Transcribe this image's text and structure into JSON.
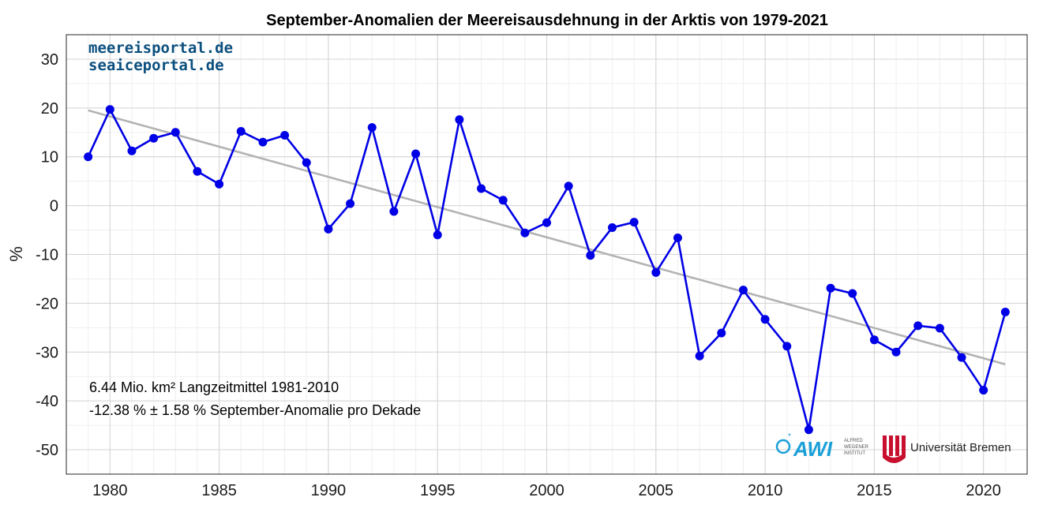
{
  "chart_data": {
    "type": "line",
    "title": "September-Anomalien der Meereisausdehnung in der Arktis von 1979-2021",
    "ylabel": "%",
    "xlabel": "",
    "xlim": [
      1978,
      2022
    ],
    "ylim": [
      -55,
      35
    ],
    "xticks": [
      1980,
      1985,
      1990,
      1995,
      2000,
      2005,
      2010,
      2015,
      2020
    ],
    "yticks": [
      -50,
      -40,
      -30,
      -20,
      -10,
      0,
      10,
      20,
      30
    ],
    "grid": true,
    "series": [
      {
        "color": "#0000e6",
        "x": [
          1979,
          1980,
          1981,
          1982,
          1983,
          1984,
          1985,
          1986,
          1987,
          1988,
          1989,
          1990,
          1991,
          1992,
          1993,
          1994,
          1995,
          1996,
          1997,
          1998,
          1999,
          2000,
          2001,
          2002,
          2003,
          2004,
          2005,
          2006,
          2007,
          2008,
          2009,
          2010,
          2011,
          2012,
          2013,
          2014,
          2015,
          2016,
          2017,
          2018,
          2019,
          2020,
          2021
        ],
        "values": [
          10,
          19.7,
          11.2,
          13.8,
          15,
          7,
          4.4,
          15.2,
          13,
          14.4,
          8.8,
          -4.8,
          0.4,
          16,
          -1.2,
          10.6,
          -6,
          17.6,
          3.5,
          1.1,
          -5.6,
          -3.5,
          4,
          -10.2,
          -4.5,
          -3.4,
          -13.7,
          -6.6,
          -30.8,
          -26.1,
          -17.3,
          -23.3,
          -28.8,
          -45.9,
          -16.9,
          -18,
          -27.5,
          -30,
          -24.6,
          -25.1,
          -31.1,
          -37.8,
          -21.8
        ]
      }
    ],
    "trend": {
      "color": "#b3b3b3",
      "x": [
        1979,
        2021
      ],
      "values": [
        19.5,
        -32.5
      ]
    },
    "annotations": [
      "6.44 Mio. km² Langzeitmittel 1981-2010",
      "-12.38 % ± 1.58 % September-Anomalie pro Dekade"
    ]
  },
  "branding": {
    "site1": "meereisportal.de",
    "site2": "seaiceportal.de",
    "awi_name": "AWI",
    "awi_lines": [
      "ALFRED",
      "WEGENER",
      "INSTITUT"
    ],
    "uni_name": "Universität Bremen",
    "awi_color": "#1aa0d8",
    "uni_color": "#c8102e"
  }
}
